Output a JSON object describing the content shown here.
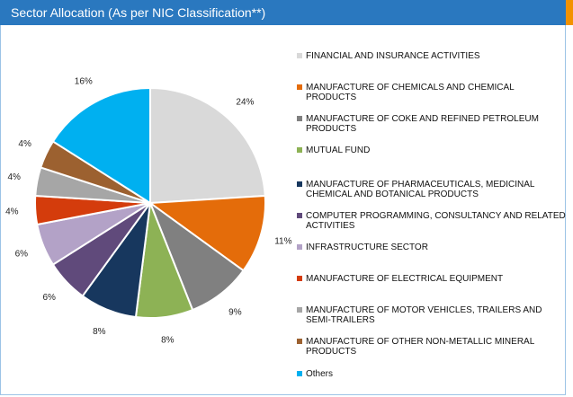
{
  "chart_data": {
    "type": "pie",
    "title": "Sector Allocation (As per NIC Classification**)",
    "categories": [
      "FINANCIAL AND INSURANCE ACTIVITIES",
      "MANUFACTURE OF CHEMICALS AND CHEMICAL PRODUCTS",
      "MANUFACTURE OF COKE AND REFINED PETROLEUM PRODUCTS",
      "MUTUAL FUND",
      "MANUFACTURE OF PHARMACEUTICALS, MEDICINAL CHEMICAL AND BOTANICAL PRODUCTS",
      "COMPUTER PROGRAMMING, CONSULTANCY AND RELATED ACTIVITIES",
      "INFRASTRUCTURE SECTOR",
      "MANUFACTURE OF ELECTRICAL EQUIPMENT",
      "MANUFACTURE OF MOTOR VEHICLES, TRAILERS AND SEMI-TRAILERS",
      "MANUFACTURE OF OTHER NON-METALLIC MINERAL PRODUCTS",
      "Others"
    ],
    "values": [
      24,
      11,
      9,
      8,
      8,
      6,
      6,
      4,
      4,
      4,
      16
    ],
    "value_labels": [
      "24%",
      "11%",
      "9%",
      "8%",
      "8%",
      "6%",
      "6%",
      "4%",
      "4%",
      "4%",
      "16%"
    ],
    "colors": [
      "#d9d9d9",
      "#e46c0a",
      "#808080",
      "#8db255",
      "#17375e",
      "#604a7b",
      "#b3a2c7",
      "#d43c0c",
      "#a6a6a6",
      "#9c6130",
      "#00b0f0"
    ]
  }
}
